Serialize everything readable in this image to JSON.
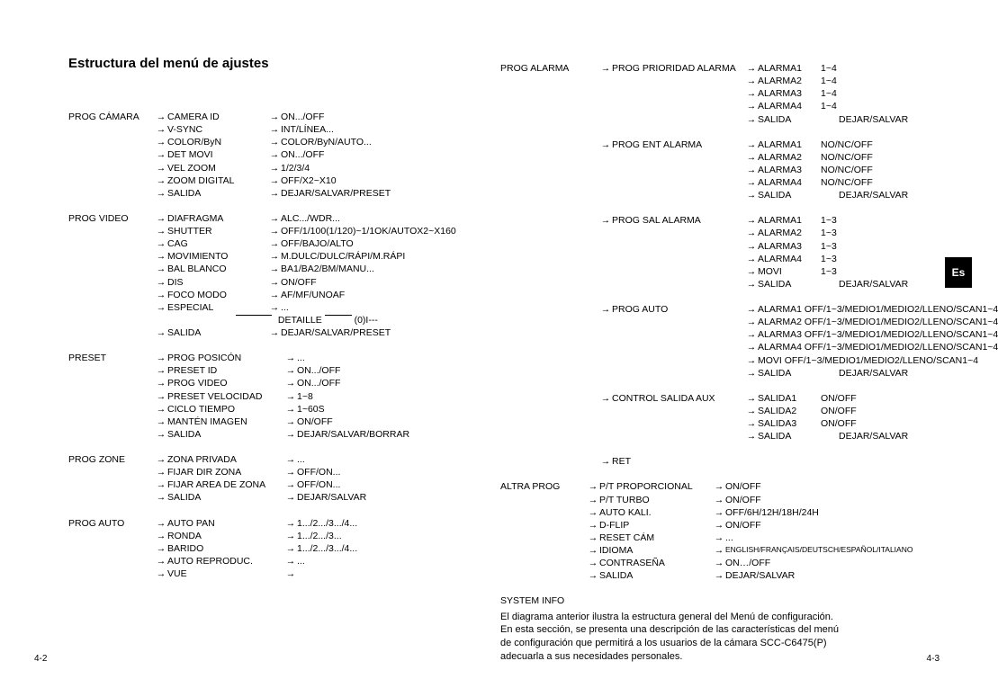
{
  "pageTitle": "Estructura del menú de ajustes",
  "langTab": "Es",
  "footerLeft": "4-2",
  "footerRight": "4-3",
  "left": {
    "groups": [
      {
        "head": "PROG CÁMARA",
        "items": [
          {
            "label": "CAMERA ID",
            "value": "ON.../OFF"
          },
          {
            "label": "V-SYNC",
            "value": "INT/LÍNEA..."
          },
          {
            "label": "COLOR/ByN",
            "value": "COLOR/ByN/AUTO..."
          },
          {
            "label": "DET MOVI",
            "value": "ON.../OFF"
          },
          {
            "label": "VEL ZOOM",
            "value": "1/2/3/4"
          },
          {
            "label": "ZOOM DIGITAL",
            "value": "OFF/X2~X10"
          },
          {
            "label": "SALIDA",
            "value": "DEJAR/SALVAR/PRESET"
          }
        ]
      },
      {
        "head": "PROG VIDEO",
        "items": [
          {
            "label": "DIAFRAGMA",
            "value": "ALC.../WDR..."
          },
          {
            "label": "SHUTTER",
            "value": "OFF/1/100(1/120)~1/1OK/AUTOX2~X160"
          },
          {
            "label": "CAG",
            "value": "OFF/BAJO/ALTO"
          },
          {
            "label": "MOVIMIENTO",
            "value": "M.DULC/DULC/RÁPI/M.RÁPI"
          },
          {
            "label": "BAL BLANCO",
            "value": "BA1/BA2/BM/MANU..."
          },
          {
            "label": "DIS",
            "value": "ON/OFF"
          },
          {
            "label": "FOCO MODO",
            "value": "AF/MF/UNOAF"
          },
          {
            "label": "ESPECIAL",
            "value": "..."
          }
        ],
        "detail": {
          "label": "DETAILLE",
          "value": "(0)I---"
        },
        "tail": [
          {
            "label": "SALIDA",
            "value": "DEJAR/SALVAR/PRESET"
          }
        ]
      },
      {
        "head": "PRESET",
        "items": [
          {
            "label": "PROG POSICÓN",
            "value": "...",
            "wide": true
          },
          {
            "label": "PRESET ID",
            "value": "ON.../OFF",
            "wide": true
          },
          {
            "label": "PROG VIDEO",
            "value": "ON.../OFF",
            "wide": true
          },
          {
            "label": "PRESET VELOCIDAD",
            "value": "1~8",
            "wide": true
          },
          {
            "label": "CICLO TIEMPO",
            "value": "1~60S",
            "wide": true
          },
          {
            "label": "MANTÉN IMAGEN",
            "value": "ON/OFF",
            "wide": true
          },
          {
            "label": "SALIDA",
            "value": "DEJAR/SALVAR/BORRAR",
            "wide": true
          }
        ]
      },
      {
        "head": "PROG ZONE",
        "items": [
          {
            "label": "ZONA PRIVADA",
            "value": "...",
            "wide": true
          },
          {
            "label": "FIJAR DIR ZONA",
            "value": "OFF/ON...",
            "wide": true
          },
          {
            "label": "FIJAR AREA DE ZONA",
            "value": "OFF/ON...",
            "wide": true
          },
          {
            "label": "SALIDA",
            "value": "DEJAR/SALVAR",
            "wide": true
          }
        ]
      },
      {
        "head": "PROG AUTO",
        "items": [
          {
            "label": "AUTO PAN",
            "value": "1.../2.../3.../4...",
            "wide": true
          },
          {
            "label": "RONDA",
            "value": "1.../2.../3...",
            "wide": true
          },
          {
            "label": "BARIDO",
            "value": "1.../2.../3.../4...",
            "wide": true
          },
          {
            "label": "AUTO REPRODUC.",
            "value": "...",
            "wide": true
          },
          {
            "label": "VUE",
            "value": "",
            "wide": true
          }
        ]
      }
    ]
  },
  "right": {
    "groups": [
      {
        "head": "PROG ALARMA",
        "sub": "PROG PRIORIDAD ALARMA",
        "items": [
          {
            "label": "ALARMA1",
            "value": "1~4"
          },
          {
            "label": "ALARMA2",
            "value": "1~4"
          },
          {
            "label": "ALARMA3",
            "value": "1~4"
          },
          {
            "label": "ALARMA4",
            "value": "1~4"
          },
          {
            "label": "SALIDA",
            "value": "DEJAR/SALVAR",
            "gap": true
          }
        ]
      },
      {
        "head": "",
        "sub": "PROG ENT ALARMA",
        "items": [
          {
            "label": "ALARMA1",
            "value": "NO/NC/OFF"
          },
          {
            "label": "ALARMA2",
            "value": "NO/NC/OFF"
          },
          {
            "label": "ALARMA3",
            "value": "NO/NC/OFF"
          },
          {
            "label": "ALARMA4",
            "value": "NO/NC/OFF"
          },
          {
            "label": "SALIDA",
            "value": "DEJAR/SALVAR",
            "gap": true
          }
        ]
      },
      {
        "head": "",
        "sub": "PROG SAL ALARMA",
        "items": [
          {
            "label": "ALARMA1",
            "value": "1~3"
          },
          {
            "label": "ALARMA2",
            "value": "1~3"
          },
          {
            "label": "ALARMA3",
            "value": "1~3"
          },
          {
            "label": "ALARMA4",
            "value": "1~3"
          },
          {
            "label": "MOVI",
            "value": "1~3"
          },
          {
            "label": "SALIDA",
            "value": "DEJAR/SALVAR",
            "gap": true
          }
        ]
      },
      {
        "head": "",
        "sub": "PROG AUTO",
        "flat": true,
        "items": [
          {
            "label": "ALARMA1  OFF/1~3/MEDIO1/MEDIO2/LLENO/SCAN1~4"
          },
          {
            "label": "ALARMA2  OFF/1~3/MEDIO1/MEDIO2/LLENO/SCAN1~4"
          },
          {
            "label": "ALARMA3  OFF/1~3/MEDIO1/MEDIO2/LLENO/SCAN1~4"
          },
          {
            "label": "ALARMA4  OFF/1~3/MEDIO1/MEDIO2/LLENO/SCAN1~4"
          },
          {
            "label": "MOVI  OFF/1~3/MEDIO1/MEDIO2/LLENO/SCAN1~4"
          },
          {
            "label": "SALIDA",
            "value": "DEJAR/SALVAR",
            "gap": true
          }
        ]
      },
      {
        "head": "",
        "sub": "CONTROL SALIDA AUX",
        "items": [
          {
            "label": "SALIDA1",
            "value": "ON/OFF"
          },
          {
            "label": "SALIDA2",
            "value": "ON/OFF"
          },
          {
            "label": "SALIDA3",
            "value": "ON/OFF"
          },
          {
            "label": "SALIDA",
            "value": "DEJAR/SALVAR",
            "gap": true
          }
        ]
      },
      {
        "head": "",
        "sub": "RET",
        "items": []
      }
    ],
    "altra": {
      "head": "ALTRA PROG",
      "items": [
        {
          "label": "P/T PROPORCIONAL",
          "value": "ON/OFF"
        },
        {
          "label": "P/T TURBO",
          "value": "ON/OFF"
        },
        {
          "label": "AUTO KALI.",
          "value": "OFF/6H/12H/18H/24H"
        },
        {
          "label": "D-FLIP",
          "value": "ON/OFF"
        },
        {
          "label": "RESET CÁM",
          "value": "..."
        },
        {
          "label": "IDIOMA",
          "value": "ENGLISH/FRANÇAIS/DEUTSCH/ESPAÑOL/ITALIANO",
          "small": true
        },
        {
          "label": "CONTRASEÑA",
          "value": "ON…/OFF"
        },
        {
          "label": "SALIDA",
          "value": "DEJAR/SALVAR"
        }
      ]
    },
    "systemInfo": "SYSTEM INFO",
    "bottomText": [
      "El diagrama anterior ilustra la estructura general del Menú de configuración.",
      "En esta sección, se presenta una descripción de las características del menú",
      "de configuración que permitirá a los usuarios de la cámara SCC-C6475(P)",
      "adecuarla a sus necesidades personales."
    ]
  }
}
